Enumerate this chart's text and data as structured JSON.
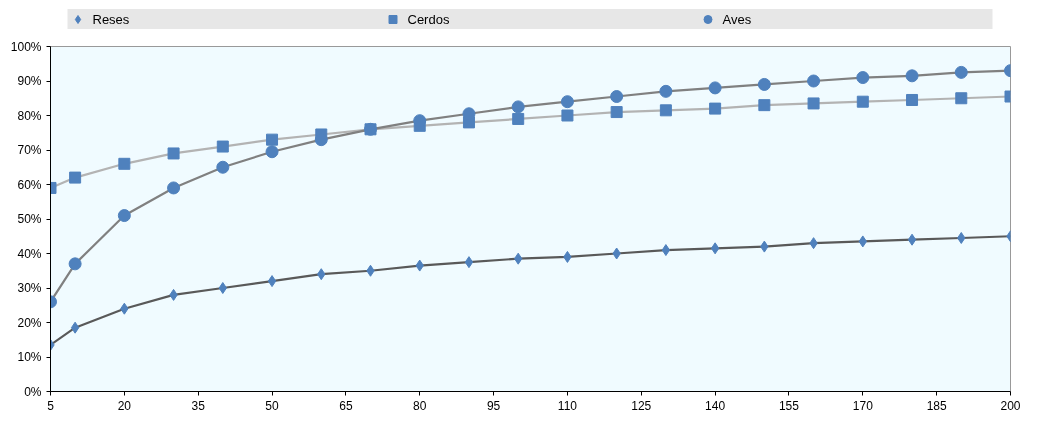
{
  "chart_data": {
    "type": "line",
    "x": [
      5,
      10,
      20,
      30,
      40,
      50,
      60,
      70,
      80,
      90,
      100,
      110,
      120,
      130,
      140,
      150,
      160,
      170,
      180,
      190,
      200
    ],
    "series": [
      {
        "name": "Reses",
        "color": "#4f81bd",
        "marker": "diamond",
        "values": [
          13.5,
          18.5,
          24,
          28,
          30,
          32,
          34,
          35,
          36.5,
          37.5,
          38.5,
          39,
          40,
          41,
          41.5,
          42,
          43,
          43.5,
          44,
          44.5,
          45
        ]
      },
      {
        "name": "Cerdos",
        "color": "#4f81bd",
        "marker": "square",
        "values": [
          59,
          62,
          66,
          69,
          71,
          73,
          74.5,
          76,
          77,
          78,
          79,
          80,
          81,
          81.5,
          82,
          83,
          83.5,
          84,
          84.5,
          85,
          85.5
        ]
      },
      {
        "name": "Aves",
        "color": "#4f81bd",
        "marker": "circle",
        "values": [
          26,
          37,
          51,
          59,
          65,
          69.5,
          73,
          76,
          78.5,
          80.5,
          82.5,
          84,
          85.5,
          87,
          88,
          89,
          90,
          91,
          91.5,
          92.5,
          93
        ]
      }
    ],
    "xlim": [
      5,
      200
    ],
    "xticks": [
      5,
      20,
      35,
      50,
      65,
      80,
      95,
      110,
      125,
      140,
      155,
      170,
      185,
      200
    ],
    "ylim": [
      0,
      100
    ],
    "yticks": [
      {
        "value": 0,
        "label": "0%"
      },
      {
        "value": 10,
        "label": "10%"
      },
      {
        "value": 20,
        "label": "20%"
      },
      {
        "value": 30,
        "label": "30%"
      },
      {
        "value": 40,
        "label": "40%"
      },
      {
        "value": 50,
        "label": "50%"
      },
      {
        "value": 60,
        "label": "60%"
      },
      {
        "value": 70,
        "label": "70%"
      },
      {
        "value": 80,
        "label": "80%"
      },
      {
        "value": 90,
        "label": "90%"
      },
      {
        "value": 100,
        "label": "100%"
      }
    ],
    "grid": false,
    "legend": "top",
    "line_style": "solid"
  }
}
